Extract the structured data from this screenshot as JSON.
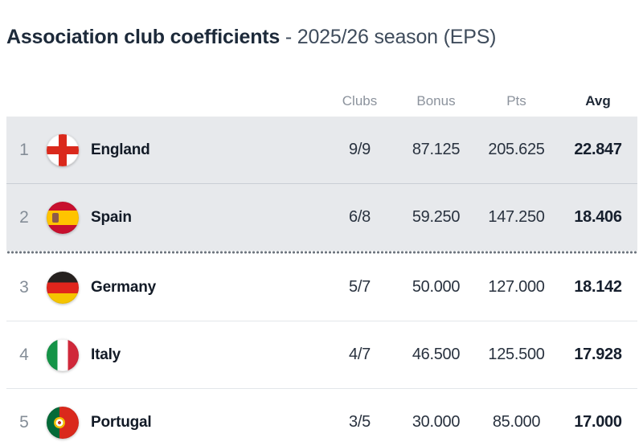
{
  "title": {
    "main": "Association club coefficients",
    "season": " - 2025/26 season (EPS)"
  },
  "colors": {
    "highlight_row_bg": "#e7e9ec",
    "title_text": "#1d2a3a",
    "cutoff_dot": "#6f7780"
  },
  "table": {
    "columns": [
      "Clubs",
      "Bonus",
      "Pts",
      "Avg"
    ],
    "rows": [
      {
        "rank": "1",
        "country": "England",
        "flag": "england-flag",
        "clubs": "9/9",
        "bonus": "87.125",
        "pts": "205.625",
        "avg": "22.847",
        "highlighted": true
      },
      {
        "rank": "2",
        "country": "Spain",
        "flag": "spain-flag",
        "clubs": "6/8",
        "bonus": "59.250",
        "pts": "147.250",
        "avg": "18.406",
        "highlighted": true
      },
      {
        "rank": "3",
        "country": "Germany",
        "flag": "germany-flag",
        "clubs": "5/7",
        "bonus": "50.000",
        "pts": "127.000",
        "avg": "18.142",
        "highlighted": false
      },
      {
        "rank": "4",
        "country": "Italy",
        "flag": "italy-flag",
        "clubs": "4/7",
        "bonus": "46.500",
        "pts": "125.500",
        "avg": "17.928",
        "highlighted": false
      },
      {
        "rank": "5",
        "country": "Portugal",
        "flag": "portugal-flag",
        "clubs": "3/5",
        "bonus": "30.000",
        "pts": "85.000",
        "avg": "17.000",
        "highlighted": false
      }
    ]
  }
}
